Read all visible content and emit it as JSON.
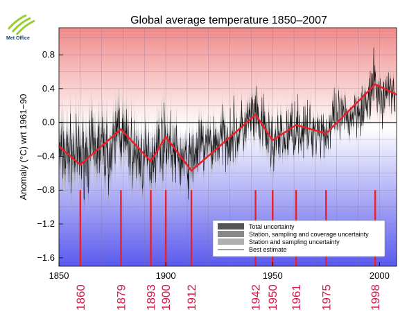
{
  "logo": {
    "text": "Met Office",
    "color": "#9acd32"
  },
  "chart_data": {
    "type": "line",
    "title": "Global average temperature 1850–2007",
    "xlabel": "",
    "ylabel": "Anomaly (°C) wrt 1961−90",
    "xlim": [
      1850,
      2008
    ],
    "ylim": [
      -1.7,
      1.12
    ],
    "x_ticks": [
      1850,
      1900,
      1950,
      2000
    ],
    "y_ticks": [
      -1.6,
      -1.2,
      -0.8,
      -0.4,
      0.0,
      0.4,
      0.8
    ],
    "y_tick_labels": [
      "−1.6",
      "−1.2",
      "−0.8",
      "−0.4",
      "0.0",
      "0.4",
      "0.8"
    ],
    "background": {
      "top_color": "#f08a8a",
      "middle_color": "#ffffff",
      "bottom_color": "#5a5aee"
    },
    "zero_line_color": "#555555",
    "best_estimate_color": "#000000",
    "uncertainty_colors": {
      "total": "#555555",
      "station_sampling_coverage": "#888888",
      "station_sampling": "#b0b0b0"
    },
    "annual_series": {
      "name": "Best estimate",
      "x": [
        1850,
        1855,
        1860,
        1865,
        1870,
        1875,
        1878,
        1880,
        1885,
        1890,
        1893,
        1895,
        1900,
        1905,
        1910,
        1912,
        1915,
        1920,
        1925,
        1930,
        1935,
        1940,
        1942,
        1945,
        1950,
        1955,
        1960,
        1961,
        1965,
        1970,
        1975,
        1980,
        1985,
        1990,
        1995,
        1998,
        2000,
        2005,
        2007
      ],
      "y": [
        -0.38,
        -0.36,
        -0.42,
        -0.35,
        -0.28,
        -0.42,
        0.05,
        -0.2,
        -0.36,
        -0.45,
        -0.42,
        -0.3,
        -0.18,
        -0.4,
        -0.5,
        -0.45,
        -0.3,
        -0.28,
        -0.22,
        -0.14,
        -0.12,
        0.05,
        0.02,
        -0.05,
        -0.25,
        -0.2,
        -0.05,
        -0.02,
        -0.12,
        -0.06,
        -0.12,
        0.05,
        0.03,
        0.18,
        0.22,
        0.52,
        0.24,
        0.42,
        0.38
      ]
    },
    "uncertainty_halfwidth": {
      "x": [
        1850,
        1880,
        1900,
        1920,
        1940,
        1950,
        1960,
        1980,
        2000,
        2007
      ],
      "y": [
        0.3,
        0.28,
        0.22,
        0.18,
        0.16,
        0.18,
        0.12,
        0.1,
        0.1,
        0.1
      ]
    },
    "trend_line": {
      "color": "#e8202a",
      "x": [
        1850,
        1860,
        1879,
        1893,
        1900,
        1912,
        1942,
        1950,
        1961,
        1975,
        1998,
        2008
      ],
      "y": [
        -0.28,
        -0.5,
        -0.08,
        -0.46,
        -0.17,
        -0.57,
        0.09,
        -0.21,
        -0.03,
        -0.13,
        0.45,
        0.33
      ]
    },
    "marker_years": [
      1860,
      1879,
      1893,
      1900,
      1912,
      1942,
      1950,
      1961,
      1975,
      1998
    ],
    "marker_color": "#e8202a",
    "marker_label_color": "#d4194a",
    "legend": {
      "position": "bottom-right",
      "entries": [
        {
          "label": "Total uncertainty",
          "color": "#555555",
          "type": "box"
        },
        {
          "label": "Station, sampling and coverage uncertainty",
          "color": "#888888",
          "type": "box"
        },
        {
          "label": "Station and sampling uncertainty",
          "color": "#b0b0b0",
          "type": "box"
        },
        {
          "label": "Best estimate",
          "color": "#444444",
          "type": "line"
        }
      ]
    }
  }
}
